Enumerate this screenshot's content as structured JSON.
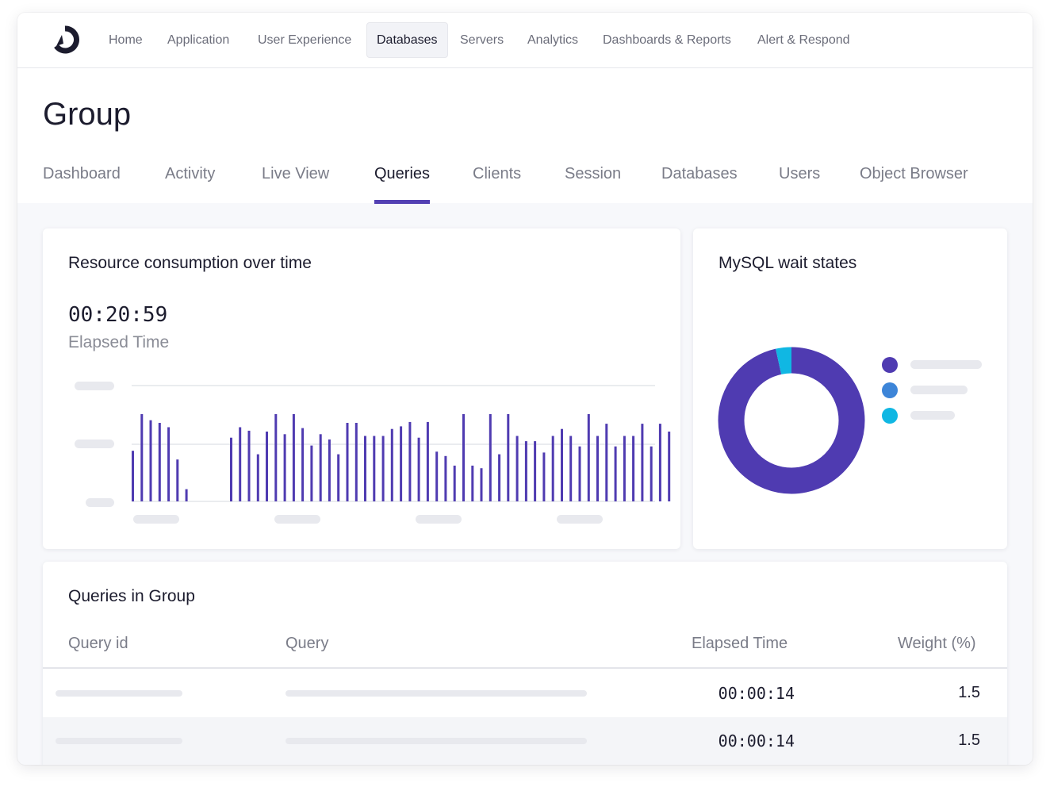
{
  "nav": {
    "items": [
      {
        "label": "Home"
      },
      {
        "label": "Application"
      },
      {
        "label": "User Experience"
      },
      {
        "label": "Databases",
        "active": true
      },
      {
        "label": "Servers"
      },
      {
        "label": "Analytics"
      },
      {
        "label": "Dashboards & Reports"
      },
      {
        "label": "Alert & Respond"
      }
    ]
  },
  "page": {
    "title": "Group",
    "tabs": [
      {
        "label": "Dashboard"
      },
      {
        "label": "Activity"
      },
      {
        "label": "Live View"
      },
      {
        "label": "Queries",
        "active": true
      },
      {
        "label": "Clients"
      },
      {
        "label": "Session"
      },
      {
        "label": "Databases"
      },
      {
        "label": "Users"
      },
      {
        "label": "Object Browser"
      }
    ]
  },
  "resource_card": {
    "title": "Resource consumption over time",
    "elapsed_value": "00:20:59",
    "elapsed_label": "Elapsed Time"
  },
  "wait_card": {
    "title": "MySQL wait states"
  },
  "chart_data": [
    {
      "type": "bar",
      "values": [
        58,
        100,
        93,
        90,
        85,
        48,
        14,
        0,
        0,
        0,
        0,
        73,
        85,
        81,
        54,
        80,
        100,
        77,
        100,
        84,
        64,
        77,
        71,
        54,
        90,
        90,
        75,
        75,
        75,
        83,
        86,
        91,
        73,
        91,
        57,
        52,
        41,
        100,
        41,
        38,
        100,
        54,
        100,
        75,
        69,
        69,
        56,
        75,
        83,
        75,
        63,
        100,
        75,
        89,
        63,
        75,
        75,
        89,
        63,
        89,
        80
      ],
      "ylim": [
        0,
        100
      ],
      "grid": true
    },
    {
      "type": "pie",
      "values": [
        96.5,
        0,
        3.5
      ],
      "colors": [
        "#4f3bb1",
        "#3d85d8",
        "#10b7e3"
      ]
    }
  ],
  "table": {
    "title": "Queries in Group",
    "headers": {
      "query_id": "Query id",
      "query": "Query",
      "elapsed": "Elapsed Time",
      "weight": "Weight (%)"
    },
    "rows": [
      {
        "elapsed": "00:00:14",
        "weight": "1.5"
      },
      {
        "elapsed": "00:00:14",
        "weight": "1.5"
      }
    ]
  },
  "colors": {
    "accent": "#5340b3",
    "series_primary": "#4f3bb1",
    "series_secondary": "#3d85d8",
    "series_tertiary": "#10b7e3"
  },
  "icons": {
    "logo": "brand-logo-icon"
  }
}
